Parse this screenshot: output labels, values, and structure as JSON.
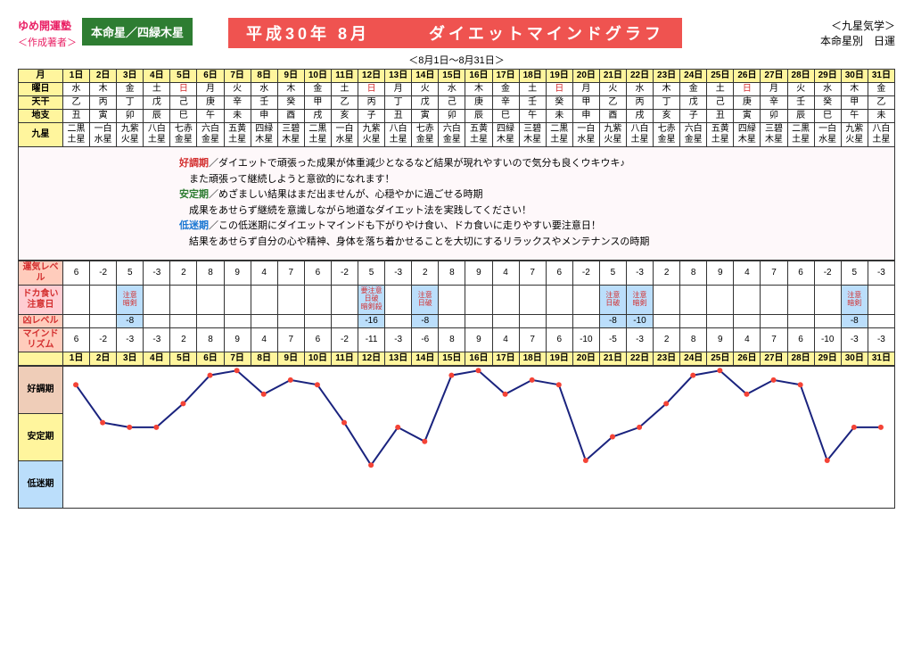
{
  "header": {
    "left1": "ゆめ開運塾",
    "left2": "＜作成著者＞",
    "star_label": "本命星／四緑木星",
    "title": "平成30年 8月　　　ダイエットマインドグラフ",
    "subtitle": "＜8月1日～8月31日＞",
    "right1": "＜九星気学＞",
    "right2": "本命星別　日運"
  },
  "row_labels": {
    "month": "月",
    "dow": "曜日",
    "tenkan": "天干",
    "chishi": "地支",
    "kyusei": "九星",
    "level": "運気レベル",
    "caution": "ドカ食い\n注意日",
    "bad": "凶レベル",
    "mind": "マインド\nリズム"
  },
  "chart_labels": [
    "好調期",
    "安定期",
    "低迷期"
  ],
  "days": [
    "1日",
    "2日",
    "3日",
    "4日",
    "5日",
    "6日",
    "7日",
    "8日",
    "9日",
    "10日",
    "11日",
    "12日",
    "13日",
    "14日",
    "15日",
    "16日",
    "17日",
    "18日",
    "19日",
    "20日",
    "21日",
    "22日",
    "23日",
    "24日",
    "25日",
    "26日",
    "27日",
    "28日",
    "29日",
    "30日",
    "31日"
  ],
  "dow": [
    "水",
    "木",
    "金",
    "土",
    "日",
    "月",
    "火",
    "水",
    "木",
    "金",
    "土",
    "日",
    "月",
    "火",
    "水",
    "木",
    "金",
    "土",
    "日",
    "月",
    "火",
    "水",
    "木",
    "金",
    "土",
    "日",
    "月",
    "火",
    "水",
    "木",
    "金"
  ],
  "dow_sun": [
    4,
    11,
    18,
    25
  ],
  "tenkan": [
    "乙",
    "丙",
    "丁",
    "戊",
    "己",
    "庚",
    "辛",
    "壬",
    "癸",
    "甲",
    "乙",
    "丙",
    "丁",
    "戊",
    "己",
    "庚",
    "辛",
    "壬",
    "癸",
    "甲",
    "乙",
    "丙",
    "丁",
    "戊",
    "己",
    "庚",
    "辛",
    "壬",
    "癸",
    "甲",
    "乙"
  ],
  "chishi": [
    "丑",
    "寅",
    "卯",
    "辰",
    "巳",
    "午",
    "未",
    "申",
    "酉",
    "戌",
    "亥",
    "子",
    "丑",
    "寅",
    "卯",
    "辰",
    "巳",
    "午",
    "未",
    "申",
    "酉",
    "戌",
    "亥",
    "子",
    "丑",
    "寅",
    "卯",
    "辰",
    "巳",
    "午",
    "未"
  ],
  "kyusei": [
    "二黒\n土星",
    "一白\n水星",
    "九紫\n火星",
    "八白\n土星",
    "七赤\n金星",
    "六白\n金星",
    "五黄\n土星",
    "四緑\n木星",
    "三碧\n木星",
    "二黒\n土星",
    "一白\n水星",
    "九紫\n火星",
    "八白\n土星",
    "七赤\n金星",
    "六白\n金星",
    "五黄\n土星",
    "四緑\n木星",
    "三碧\n木星",
    "二黒\n土星",
    "一白\n水星",
    "九紫\n火星",
    "八白\n土星",
    "七赤\n金星",
    "六白\n金星",
    "五黄\n土星",
    "四緑\n木星",
    "三碧\n木星",
    "二黒\n土星",
    "一白\n水星",
    "九紫\n火星",
    "八白\n土星"
  ],
  "level": [
    6,
    -2,
    5,
    -3,
    2,
    8,
    9,
    4,
    7,
    6,
    -2,
    5,
    -3,
    2,
    8,
    9,
    4,
    7,
    6,
    -2,
    5,
    -3,
    2,
    8,
    9,
    4,
    7,
    6,
    -2,
    5,
    -3
  ],
  "caution": {
    "2": "注意\n暗剣",
    "11": "要注意\n日破\n暗剣殺",
    "13": "注意\n日破",
    "20": "注意\n日破",
    "21": "注意\n暗剣",
    "29": "注意\n暗剣"
  },
  "bad": {
    "2": -8,
    "11": -16,
    "13": -8,
    "20": -8,
    "21": -10,
    "29": -8
  },
  "mind": [
    6,
    -2,
    -3,
    -3,
    2,
    8,
    9,
    4,
    7,
    6,
    -2,
    -11,
    -3,
    -6,
    8,
    9,
    4,
    7,
    6,
    -10,
    -5,
    -3,
    2,
    8,
    9,
    4,
    7,
    6,
    -10,
    -3,
    -3
  ],
  "descs": [
    {
      "k": "好調期",
      "c": "k1",
      "t": "／ダイエットで頑張った成果が体重減少となるなど結果が現れやすいので気分も良くウキウキ♪"
    },
    {
      "k": "",
      "c": "",
      "t": "　また頑張って継続しようと意欲的になれます！"
    },
    {
      "k": "安定期",
      "c": "k2",
      "t": "／めざましい結果はまだ出ませんが、心穏やかに過ごせる時期"
    },
    {
      "k": "",
      "c": "",
      "t": "　成果をあせらず継続を意識しながら地道なダイエット法を実践してください！"
    },
    {
      "k": "低迷期",
      "c": "k3",
      "t": "／この低迷期にダイエットマインドも下がりやけ食い、ドカ食いに走りやすい要注意日！"
    },
    {
      "k": "",
      "c": "",
      "t": "　結果をあせらず自分の心や精神、身体を落ち着かせることを大切にするリラックスやメンテナンスの時期"
    }
  ],
  "chart": {
    "line_color": "#1a237e",
    "line_width": 2,
    "marker_color": "#f44336",
    "marker_size": 3,
    "ymin": -20,
    "ymax": 10
  }
}
